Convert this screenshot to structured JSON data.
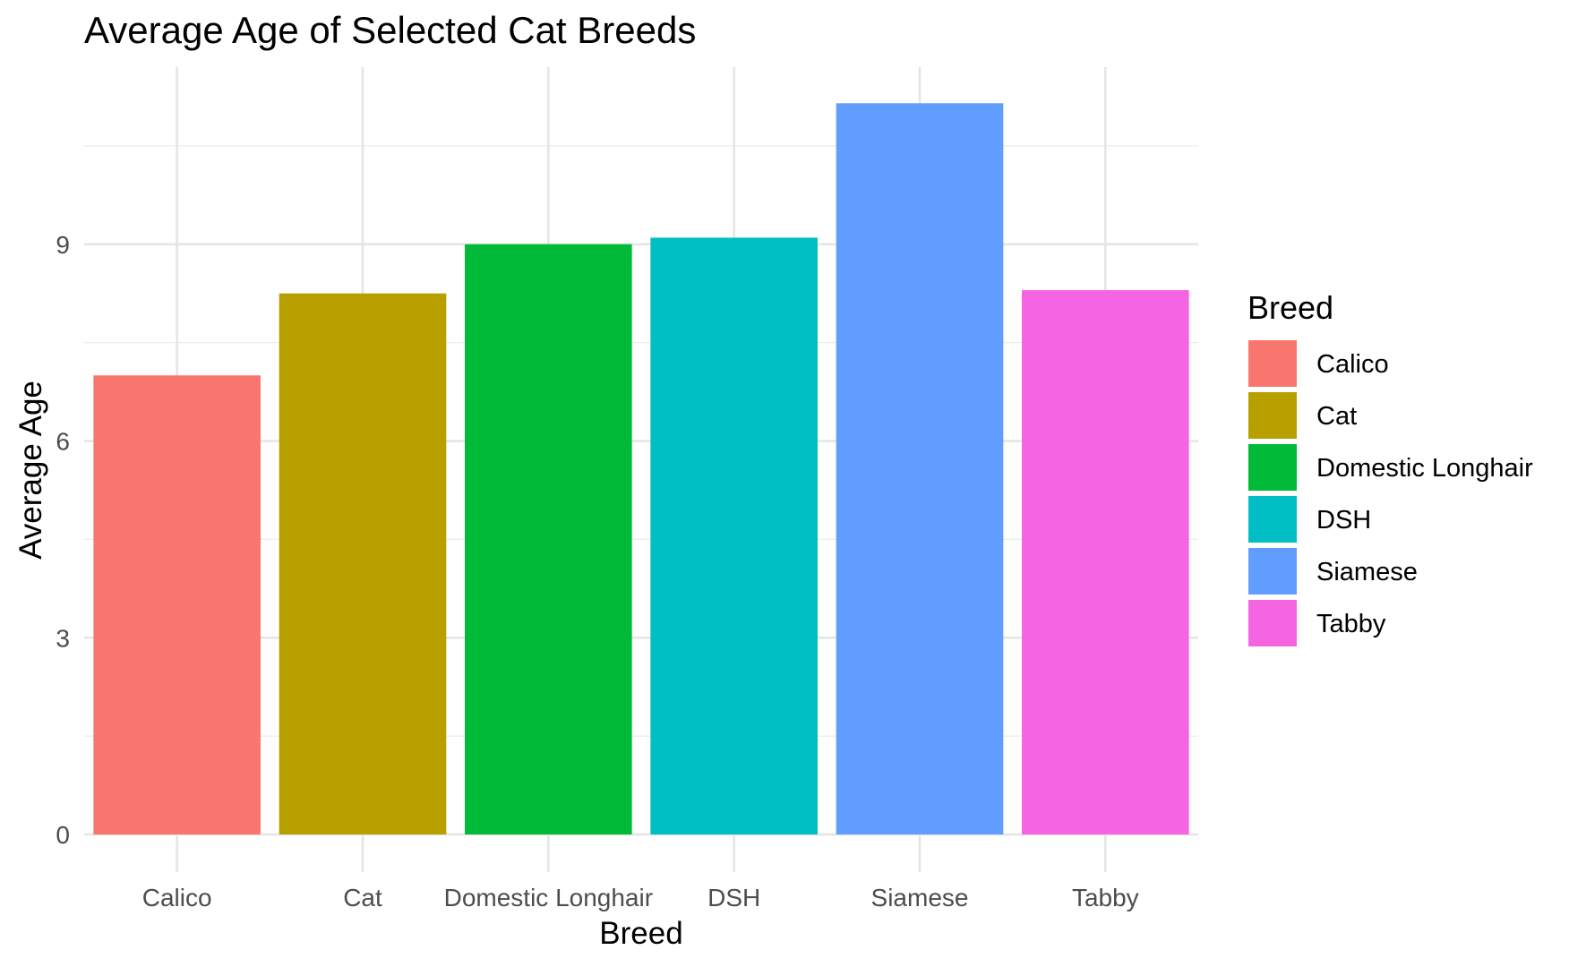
{
  "chart_data": {
    "type": "bar",
    "title": "Average Age of Selected Cat Breeds",
    "xlabel": "Breed",
    "ylabel": "Average Age",
    "categories": [
      "Calico",
      "Cat",
      "Domestic Longhair",
      "DSH",
      "Siamese",
      "Tabby"
    ],
    "values": [
      7.0,
      8.25,
      9.0,
      9.1,
      11.15,
      8.3
    ],
    "colors": [
      "#F8766D",
      "#B79F00",
      "#00BA38",
      "#00BFC4",
      "#619CFF",
      "#F564E3"
    ],
    "ylim": [
      0,
      11.7
    ],
    "yticks": [
      0,
      3,
      6,
      9
    ],
    "ytick_labels": [
      "0",
      "3",
      "6",
      "9"
    ],
    "grid": true,
    "legend": {
      "title": "Breed",
      "position": "right",
      "items": [
        "Calico",
        "Cat",
        "Domestic Longhair",
        "DSH",
        "Siamese",
        "Tabby"
      ]
    }
  }
}
